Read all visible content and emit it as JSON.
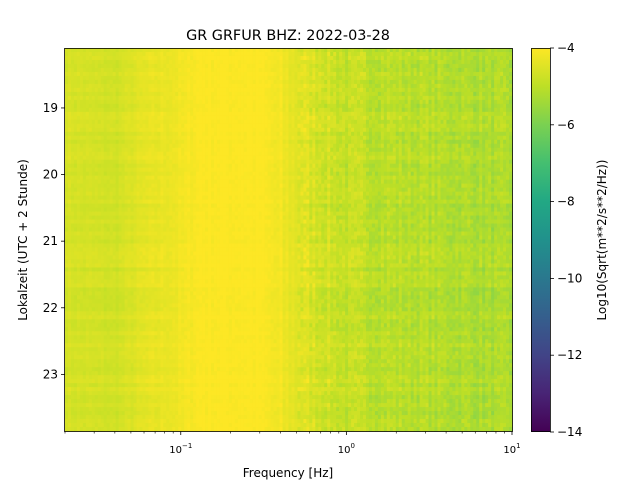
{
  "chart_data": {
    "type": "heatmap",
    "title": "GR GRFUR  BHZ: 2022-03-28",
    "xlabel": "Frequency [Hz]",
    "ylabel": "Lokalzeit (UTC + 2 Stunde)",
    "x_scale": "log",
    "xlim": [
      0.02,
      10
    ],
    "x_ticks": [
      {
        "value": 0.1,
        "base": "10",
        "exp": "−1"
      },
      {
        "value": 1,
        "base": "10",
        "exp": "0"
      },
      {
        "value": 10,
        "base": "10",
        "exp": "1"
      }
    ],
    "ylim": [
      18.1,
      23.85
    ],
    "y_inverted": true,
    "y_ticks": [
      "19",
      "20",
      "21",
      "22",
      "23"
    ],
    "colorbar": {
      "label": "Log10(Sqrt(m**2/s**2/Hz))",
      "colormap": "viridis",
      "range": [
        -14,
        -4
      ],
      "ticks": [
        "−4",
        "−6",
        "−8",
        "−10",
        "−12",
        "−14"
      ]
    },
    "approx_level_by_frequency": [
      {
        "freq_hz": 0.02,
        "log10_amp": -4.6
      },
      {
        "freq_hz": 0.04,
        "log10_amp": -4.7
      },
      {
        "freq_hz": 0.06,
        "log10_amp": -4.4
      },
      {
        "freq_hz": 0.1,
        "log10_amp": -4.2
      },
      {
        "freq_hz": 0.13,
        "log10_amp": -4.0
      },
      {
        "freq_hz": 0.3,
        "log10_amp": -4.0
      },
      {
        "freq_hz": 0.5,
        "log10_amp": -4.4
      },
      {
        "freq_hz": 1,
        "log10_amp": -4.9
      },
      {
        "freq_hz": 3,
        "log10_amp": -5.1
      },
      {
        "freq_hz": 10,
        "log10_amp": -5.3
      }
    ]
  }
}
